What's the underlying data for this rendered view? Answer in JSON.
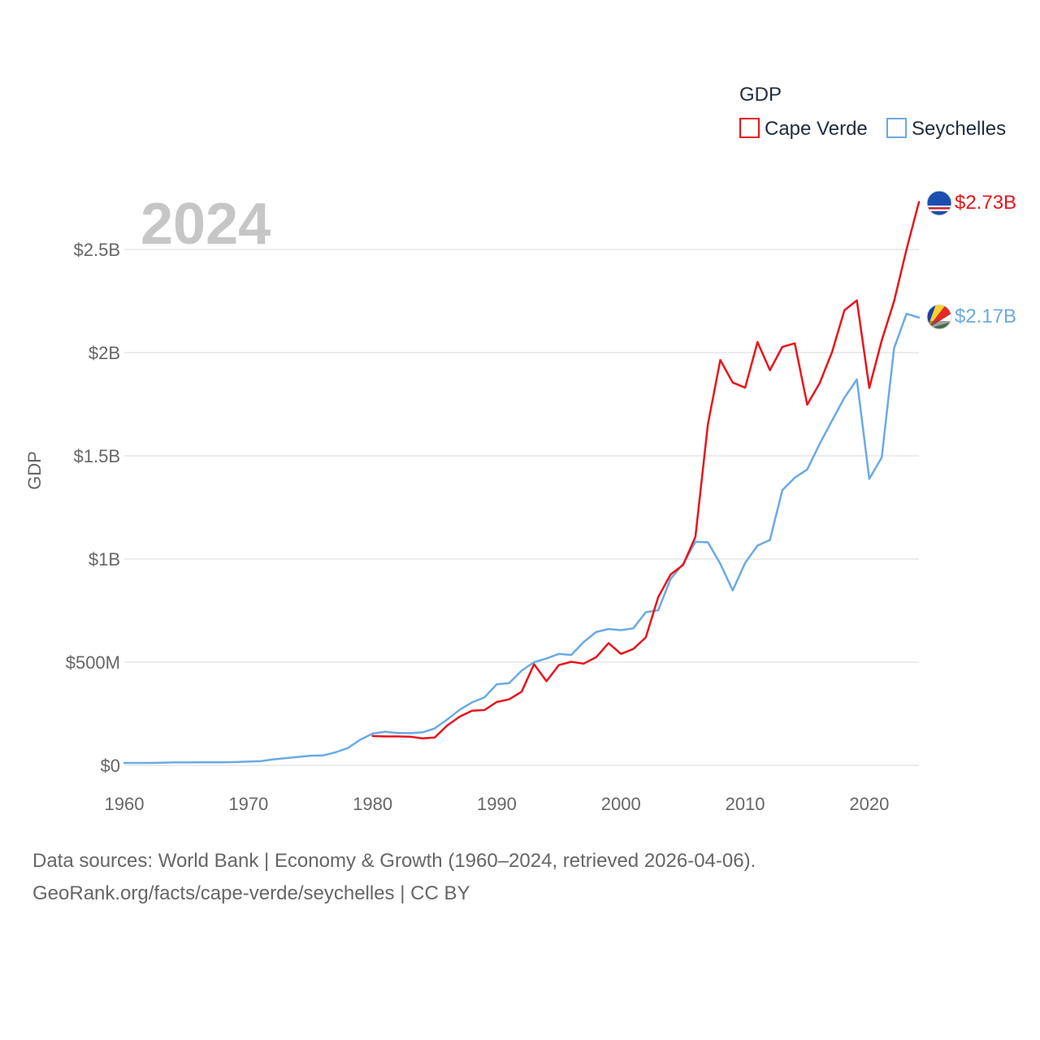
{
  "chart_data": {
    "type": "line",
    "year_label": "2024",
    "ylabel": "GDP",
    "xlim": [
      1960,
      2024
    ],
    "ylim": [
      0,
      2800000000
    ],
    "grid": true,
    "x_ticks": [
      1960,
      1970,
      1980,
      1990,
      2000,
      2010,
      2020
    ],
    "x_tick_labels": [
      "1960",
      "1970",
      "1980",
      "1990",
      "2000",
      "2010",
      "2020"
    ],
    "y_ticks": [
      0,
      500000000,
      1000000000,
      1500000000,
      2000000000,
      2500000000
    ],
    "y_tick_labels": [
      "$0",
      "$500M",
      "$1B",
      "$1.5B",
      "$2B",
      "$2.5B"
    ],
    "legend": {
      "title": "GDP",
      "position": "top-right"
    },
    "series": [
      {
        "name": "Cape Verde",
        "color": "#e8141b",
        "end_label": "$2.73B",
        "flag_icon": "cape-verde-flag-icon",
        "x": [
          1980,
          1981,
          1982,
          1983,
          1984,
          1985,
          1986,
          1987,
          1988,
          1989,
          1990,
          1991,
          1992,
          1993,
          1994,
          1995,
          1996,
          1997,
          1998,
          1999,
          2000,
          2001,
          2002,
          2003,
          2004,
          2005,
          2006,
          2007,
          2008,
          2009,
          2010,
          2011,
          2012,
          2013,
          2014,
          2015,
          2016,
          2017,
          2018,
          2019,
          2020,
          2021,
          2022,
          2023,
          2024
        ],
        "values": [
          142000000,
          140000000,
          140000000,
          139000000,
          131000000,
          135000000,
          193000000,
          236000000,
          265000000,
          268000000,
          307000000,
          320000000,
          357000000,
          490000000,
          408000000,
          486000000,
          502000000,
          493000000,
          524000000,
          592000000,
          540000000,
          564000000,
          620000000,
          815000000,
          925000000,
          971000000,
          1108000000,
          1651000000,
          1964000000,
          1855000000,
          1830000000,
          2051000000,
          1915000000,
          2028000000,
          2045000000,
          1748000000,
          1852000000,
          2002000000,
          2205000000,
          2253000000,
          1829000000,
          2059000000,
          2249000000,
          2500000000,
          2730000000
        ]
      },
      {
        "name": "Seychelles",
        "color": "#6aaae4",
        "end_label": "$2.17B",
        "flag_icon": "seychelles-flag-icon",
        "x": [
          1960,
          1961,
          1962,
          1963,
          1964,
          1965,
          1966,
          1967,
          1968,
          1969,
          1970,
          1971,
          1972,
          1973,
          1974,
          1975,
          1976,
          1977,
          1978,
          1979,
          1980,
          1981,
          1982,
          1983,
          1984,
          1985,
          1986,
          1987,
          1988,
          1989,
          1990,
          1991,
          1992,
          1993,
          1994,
          1995,
          1996,
          1997,
          1998,
          1999,
          2000,
          2001,
          2002,
          2003,
          2004,
          2005,
          2006,
          2007,
          2008,
          2009,
          2010,
          2011,
          2012,
          2013,
          2014,
          2015,
          2016,
          2017,
          2018,
          2019,
          2020,
          2021,
          2022,
          2023,
          2024
        ],
        "values": [
          12000000,
          12000000,
          12000000,
          13000000,
          14000000,
          14000000,
          15000000,
          15000000,
          15000000,
          16000000,
          18000000,
          21000000,
          29000000,
          35000000,
          41000000,
          47000000,
          48000000,
          63000000,
          84000000,
          124000000,
          154000000,
          163000000,
          157000000,
          156000000,
          160000000,
          179000000,
          222000000,
          269000000,
          305000000,
          329000000,
          393000000,
          399000000,
          459000000,
          500000000,
          518000000,
          540000000,
          535000000,
          598000000,
          646000000,
          661000000,
          655000000,
          664000000,
          742000000,
          751000000,
          904000000,
          976000000,
          1083000000,
          1081000000,
          977000000,
          848000000,
          981000000,
          1065000000,
          1092000000,
          1334000000,
          1394000000,
          1434000000,
          1558000000,
          1670000000,
          1782000000,
          1870000000,
          1388000000,
          1492000000,
          2021000000,
          2188000000,
          2170000000
        ]
      }
    ]
  },
  "footer": {
    "line1": "Data sources: World Bank | Economy & Growth (1960–2024, retrieved 2026-04-06).",
    "line2": "GeoRank.org/facts/cape-verde/seychelles | CC BY"
  }
}
